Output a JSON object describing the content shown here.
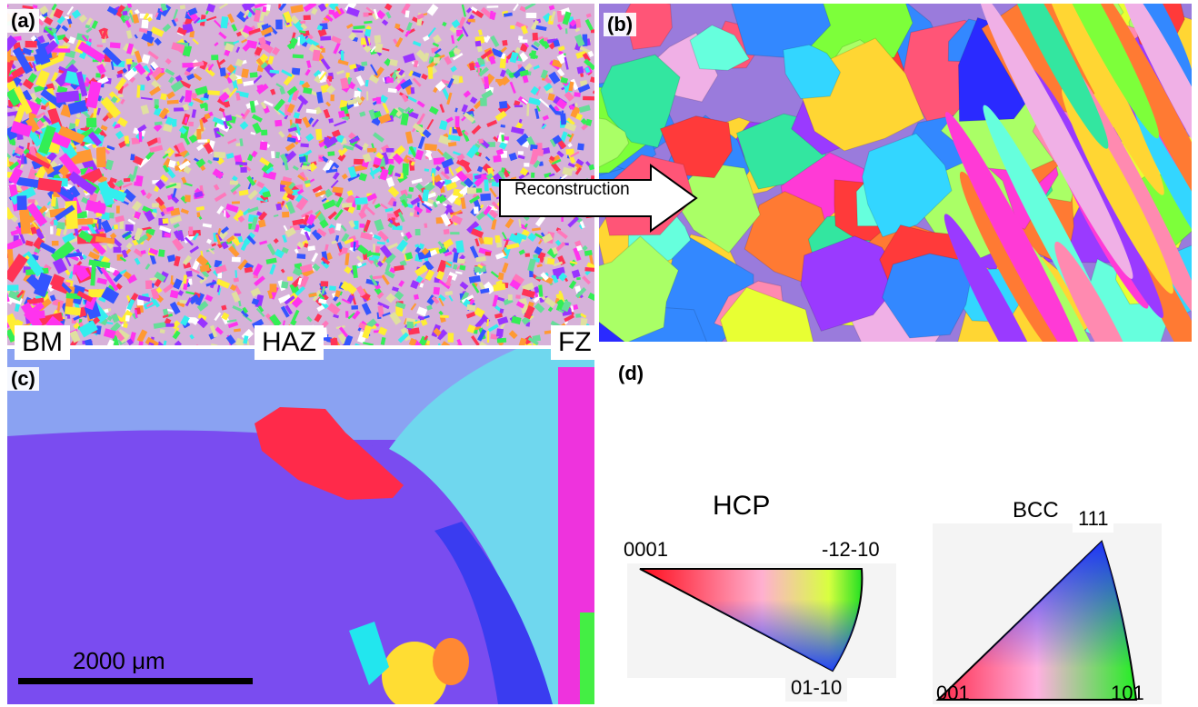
{
  "panels": {
    "a": {
      "label": "(a)"
    },
    "b": {
      "label": "(b)"
    },
    "c": {
      "label": "(c)"
    },
    "d": {
      "label": "(d)"
    }
  },
  "zones": {
    "bm": "BM",
    "haz": "HAZ",
    "fz": "FZ"
  },
  "arrow": {
    "label": "Reconstruction"
  },
  "scale_bar": {
    "label": "2000 μm"
  },
  "ipf_hcp": {
    "title": "HCP",
    "corner_top_left": "0001",
    "corner_top_right": "-12-10",
    "corner_bottom": "01-10"
  },
  "ipf_bcc": {
    "title": "BCC",
    "corner_top": "111",
    "corner_bottom_left": "001",
    "corner_bottom_right": "101"
  },
  "colors": {
    "bcc_red": "#ff2a4a",
    "bcc_green": "#22ee22",
    "bcc_blue": "#1a2cff",
    "hcp_red": "#ff0a1a",
    "hcp_green": "#22e022",
    "hcp_blue": "#1a3cff",
    "haz_violet": "#7a4cf0",
    "haz_cyan": "#6fd7ee"
  }
}
